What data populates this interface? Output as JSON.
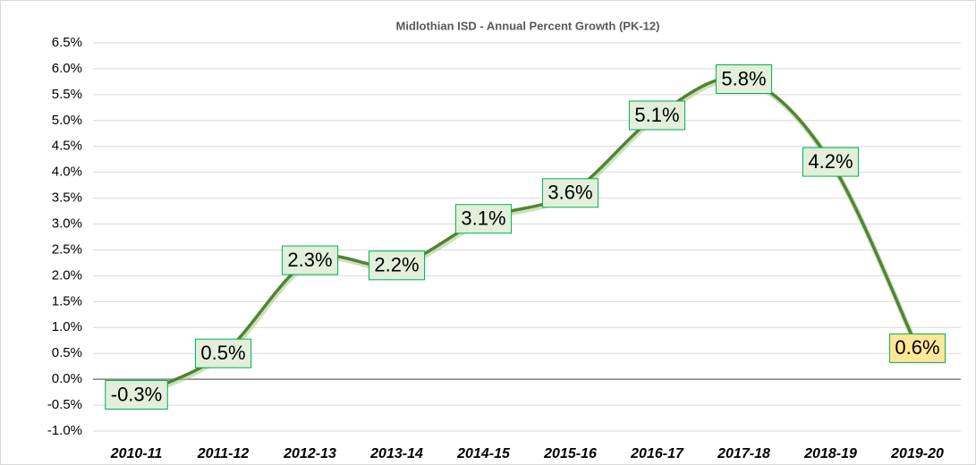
{
  "chart_data": {
    "type": "line",
    "title": "Midlothian ISD - Annual Percent Growth (PK-12)",
    "categories": [
      "2010-11",
      "2011-12",
      "2012-13",
      "2013-14",
      "2014-15",
      "2015-16",
      "2016-17",
      "2017-18",
      "2018-19",
      "2019-20"
    ],
    "series": [
      {
        "name": "Annual Percent Growth",
        "color": "#548235",
        "values": [
          -0.3,
          0.5,
          2.3,
          2.2,
          3.1,
          3.6,
          5.1,
          5.8,
          4.2,
          0.6
        ],
        "value_labels": [
          "-0.3%",
          "0.5%",
          "2.3%",
          "2.2%",
          "3.1%",
          "3.6%",
          "5.1%",
          "5.8%",
          "4.2%",
          "0.6%"
        ],
        "label_fills": [
          "#e2efda",
          "#e2efda",
          "#e2efda",
          "#e2efda",
          "#e2efda",
          "#e2efda",
          "#e2efda",
          "#e2efda",
          "#e2efda",
          "#ffe699"
        ]
      }
    ],
    "ylim": [
      -1.0,
      6.5
    ],
    "yticks": [
      {
        "value": -1.0,
        "label": "-1.0%"
      },
      {
        "value": -0.5,
        "label": "-0.5%"
      },
      {
        "value": 0.0,
        "label": "0.0%"
      },
      {
        "value": 0.5,
        "label": "0.5%"
      },
      {
        "value": 1.0,
        "label": "1.0%"
      },
      {
        "value": 1.5,
        "label": "1.5%"
      },
      {
        "value": 2.0,
        "label": "2.0%"
      },
      {
        "value": 2.5,
        "label": "2.5%"
      },
      {
        "value": 3.0,
        "label": "3.0%"
      },
      {
        "value": 3.5,
        "label": "3.5%"
      },
      {
        "value": 4.0,
        "label": "4.0%"
      },
      {
        "value": 4.5,
        "label": "4.5%"
      },
      {
        "value": 5.0,
        "label": "5.0%"
      },
      {
        "value": 5.5,
        "label": "5.5%"
      },
      {
        "value": 6.0,
        "label": "6.0%"
      },
      {
        "value": 6.5,
        "label": "6.5%"
      }
    ],
    "grid": true,
    "smooth": true
  }
}
